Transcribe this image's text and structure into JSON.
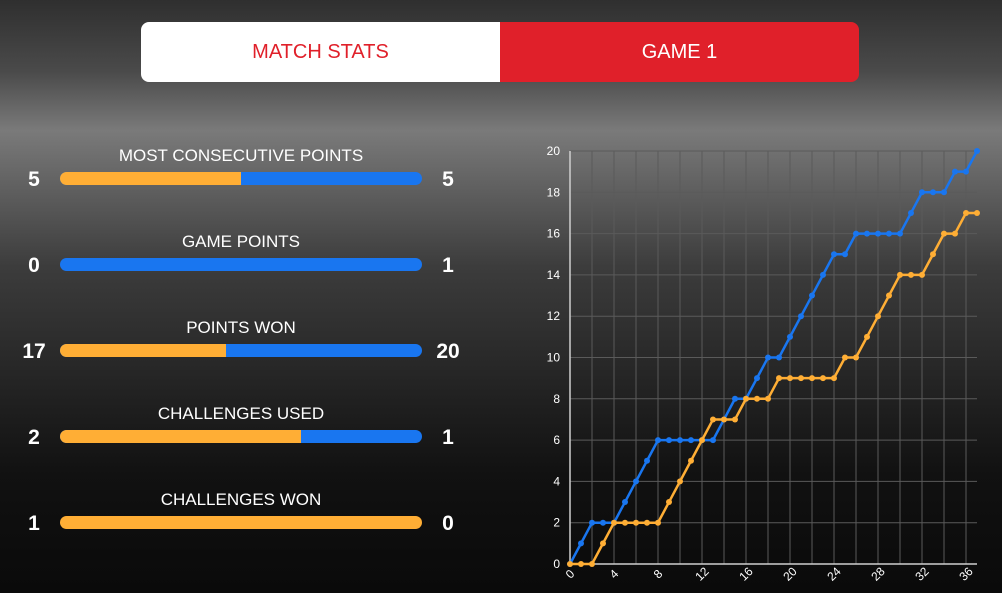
{
  "tabs": [
    {
      "label": "MATCH STATS",
      "active": false
    },
    {
      "label": "GAME 1",
      "active": true
    }
  ],
  "colors": {
    "orange": "#ffae35",
    "blue": "#1976f0",
    "red": "#e0202a"
  },
  "stats": [
    {
      "title": "MOST CONSECUTIVE POINTS",
      "left": "5",
      "right": "5",
      "orange_fraction": 0.5
    },
    {
      "title": "GAME POINTS",
      "left": "0",
      "right": "1",
      "orange_fraction": 0.0
    },
    {
      "title": "POINTS WON",
      "left": "17",
      "right": "20",
      "orange_fraction": 0.459
    },
    {
      "title": "CHALLENGES USED",
      "left": "2",
      "right": "1",
      "orange_fraction": 0.667
    },
    {
      "title": "CHALLENGES WON",
      "left": "1",
      "right": "0",
      "orange_fraction": 1.0
    }
  ],
  "chart_data": {
    "type": "line",
    "title": "",
    "xlabel": "",
    "ylabel": "",
    "xlim": [
      0,
      37
    ],
    "ylim": [
      0,
      20
    ],
    "xticks": [
      "0",
      "4",
      "8",
      "12",
      "16",
      "20",
      "24",
      "28",
      "32",
      "36"
    ],
    "yticks": [
      "0",
      "2",
      "4",
      "6",
      "8",
      "10",
      "12",
      "14",
      "16",
      "18",
      "20"
    ],
    "grid": true,
    "series": [
      {
        "color": "#1976f0",
        "x": [
          0,
          1,
          2,
          3,
          4,
          5,
          6,
          7,
          8,
          9,
          10,
          11,
          12,
          13,
          14,
          15,
          16,
          17,
          18,
          19,
          20,
          21,
          22,
          23,
          24,
          25,
          26,
          27,
          28,
          29,
          30,
          31,
          32,
          33,
          34,
          35,
          36,
          37
        ],
        "values": [
          0,
          1,
          2,
          2,
          2,
          3,
          4,
          5,
          6,
          6,
          6,
          6,
          6,
          6,
          7,
          8,
          8,
          9,
          10,
          10,
          11,
          12,
          13,
          14,
          15,
          15,
          16,
          16,
          16,
          16,
          16,
          17,
          18,
          18,
          18,
          19,
          19,
          20
        ]
      },
      {
        "color": "#ffae35",
        "x": [
          0,
          1,
          2,
          3,
          4,
          5,
          6,
          7,
          8,
          9,
          10,
          11,
          12,
          13,
          14,
          15,
          16,
          17,
          18,
          19,
          20,
          21,
          22,
          23,
          24,
          25,
          26,
          27,
          28,
          29,
          30,
          31,
          32,
          33,
          34,
          35,
          36,
          37
        ],
        "values": [
          0,
          0,
          0,
          1,
          2,
          2,
          2,
          2,
          2,
          3,
          4,
          5,
          6,
          7,
          7,
          7,
          8,
          8,
          8,
          9,
          9,
          9,
          9,
          9,
          9,
          10,
          10,
          11,
          12,
          13,
          14,
          14,
          14,
          15,
          16,
          16,
          17,
          17
        ]
      }
    ]
  }
}
